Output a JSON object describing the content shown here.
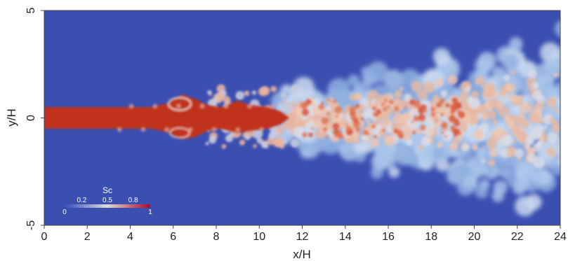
{
  "chart_data": {
    "type": "heatmap",
    "title": "",
    "xlabel": "x/H",
    "ylabel": "y/H",
    "xlim": [
      0,
      24
    ],
    "ylim": [
      -5,
      5
    ],
    "x_ticks": [
      "0",
      "2",
      "4",
      "6",
      "8",
      "10",
      "12",
      "14",
      "16",
      "18",
      "20",
      "22",
      "24"
    ],
    "y_ticks": [
      "-5",
      "0",
      "5"
    ],
    "colorbar": {
      "label": "Sc",
      "range": [
        0,
        1
      ],
      "tick_labels": [
        "0",
        "0.2",
        "0.5",
        "0.8",
        "1"
      ],
      "colors": [
        "#3a4cc0",
        "#dddddd",
        "#b40426"
      ]
    },
    "background_value": 0,
    "jet_core": {
      "value": 1,
      "x_range": [
        0,
        5
      ],
      "half_width": 0.5
    },
    "description_colors": {
      "background": "#3b4fb1",
      "core": "#c0321f",
      "mixing": "#e8b9a3",
      "diluted": "#a9c4ea"
    }
  }
}
